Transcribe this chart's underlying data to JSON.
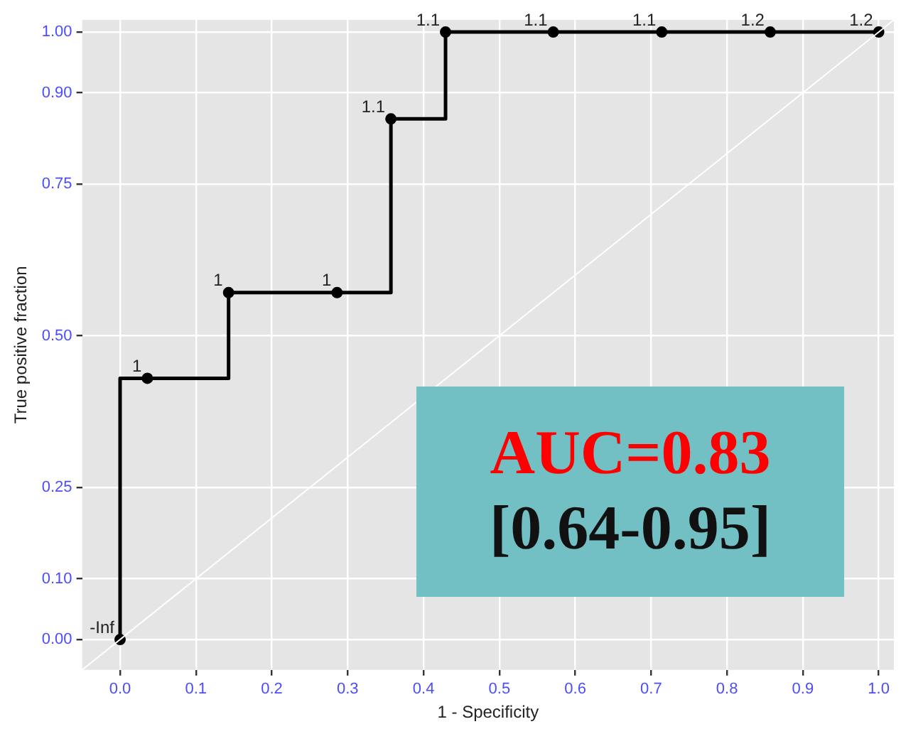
{
  "chart_data": {
    "type": "line",
    "xlabel": "1 - Specificity",
    "ylabel": "True positive fraction",
    "xlim": [
      -0.05,
      1.02
    ],
    "ylim": [
      -0.05,
      1.02
    ],
    "xticks": [
      {
        "value": 0,
        "label": "0.0"
      },
      0.1,
      0.2,
      0.3,
      0.4,
      0.5,
      0.6,
      0.7,
      0.8,
      0.9,
      {
        "value": 1,
        "label": "1.0"
      }
    ],
    "yticks": [
      {
        "value": 0,
        "label": "0.00"
      },
      {
        "value": 0.1,
        "label": "0.10"
      },
      {
        "value": 0.25,
        "label": "0.25"
      },
      {
        "value": 0.5,
        "label": "0.50"
      },
      {
        "value": 0.75,
        "label": "0.75"
      },
      {
        "value": 0.9,
        "label": "0.90"
      },
      {
        "value": 1,
        "label": "1.00"
      }
    ],
    "grid": true,
    "legend": false,
    "series": [
      {
        "color": "#ffffff",
        "x": [
          -0.05,
          1.02
        ],
        "values": [
          -0.05,
          1.02
        ],
        "marker": "none"
      },
      {
        "color": "#000000",
        "x": [
          0,
          0,
          0.143,
          0.143,
          0.357,
          0.357,
          0.429,
          0.429,
          1
        ],
        "values": [
          0,
          0.43,
          0.43,
          0.571,
          0.571,
          0.857,
          0.857,
          1,
          1
        ],
        "marker": "none"
      },
      {
        "type": "scatter",
        "color": "#000000",
        "x": [
          0,
          0.036,
          0.143,
          0.286,
          0.357,
          0.429,
          0.571,
          0.714,
          0.857,
          1
        ],
        "values": [
          0,
          0.43,
          0.571,
          0.571,
          0.857,
          1,
          1,
          1,
          1,
          1
        ],
        "marker": "circle"
      }
    ],
    "annotations": [
      "AUC=0.83",
      "[0.64-0.95]",
      {
        "text": "-Inf",
        "x": 0,
        "y": 0
      },
      {
        "text": "1",
        "x": 0.036,
        "y": 0.43
      },
      {
        "text": "1",
        "x": 0.143,
        "y": 0.571
      },
      {
        "text": "1",
        "x": 0.286,
        "y": 0.571
      },
      {
        "text": "1.1",
        "x": 0.357,
        "y": 0.857
      },
      {
        "text": "1.1",
        "x": 0.429,
        "y": 1
      },
      {
        "text": "1.1",
        "x": 0.571,
        "y": 1
      },
      {
        "text": "1.1",
        "x": 0.714,
        "y": 1
      },
      {
        "text": "1.2",
        "x": 0.857,
        "y": 1
      },
      {
        "text": "1.2",
        "x": 1,
        "y": 1
      }
    ]
  }
}
